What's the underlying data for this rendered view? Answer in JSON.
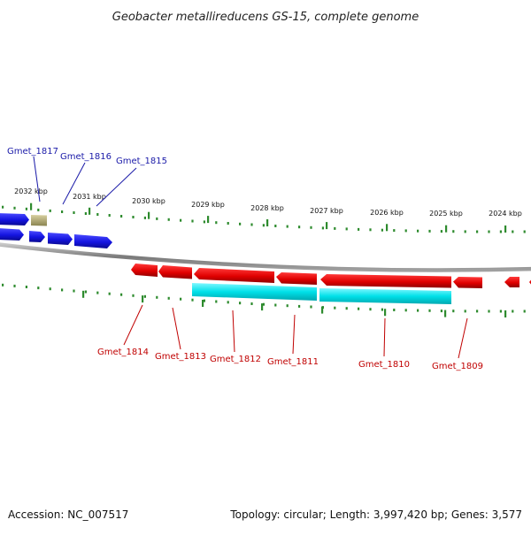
{
  "title": "Geobacter metallireducens GS-15, complete genome",
  "footer": {
    "accession": "Accession: NC_007517",
    "summary": "Topology: circular; Length: 3,997,420 bp; Genes: 3,577"
  },
  "colors": {
    "forward_gene": "#1414e0",
    "reverse_gene": "#e00000",
    "reverse_cds": "#00e0e8",
    "pseudo_gene": "#b8b070",
    "tick": "#2e8b2e",
    "backbone": "#808080",
    "label_top": "#1a1aa8",
    "label_bottom": "#c00000"
  },
  "axis": {
    "unit": "kbp",
    "ticks": [
      "2032 kbp",
      "2031 kbp",
      "2030 kbp",
      "2029 kbp",
      "2028 kbp",
      "2027 kbp",
      "2026 kbp",
      "2025 kbp",
      "2024 kbp"
    ]
  },
  "genes_top": [
    "Gmet_1817",
    "Gmet_1816",
    "Gmet_1815"
  ],
  "genes_bottom": [
    "Gmet_1814",
    "Gmet_1813",
    "Gmet_1812",
    "Gmet_1811",
    "Gmet_1810",
    "Gmet_1809"
  ]
}
